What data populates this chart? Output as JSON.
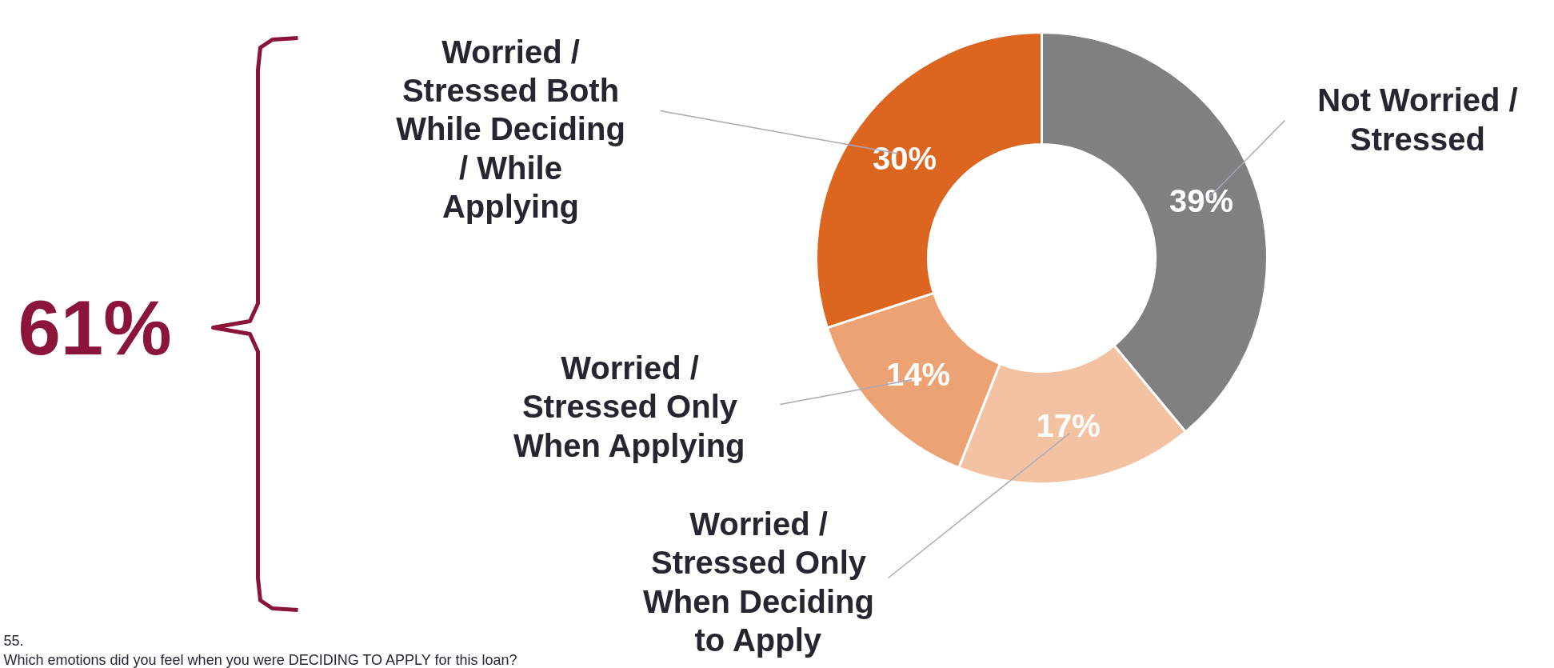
{
  "chart_data": {
    "type": "donut",
    "categories": [
      "Not Worried /\nStressed",
      "Worried /\nStressed Only\nWhen Deciding\nto Apply",
      "Worried /\nStressed Only\nWhen Applying",
      "Worried /\nStressed Both\nWhile Deciding\n/ While\nApplying"
    ],
    "values": [
      39,
      17,
      14,
      30
    ],
    "colors": [
      "#808080",
      "#f2c2a2",
      "#eda274",
      "#dc6520"
    ],
    "value_labels": [
      "39%",
      "17%",
      "14%",
      "30%"
    ],
    "annotations": [
      "61%",
      "55.",
      "Which emotions did you feel when you were DECIDING TO APPLY for this loan?"
    ]
  }
}
